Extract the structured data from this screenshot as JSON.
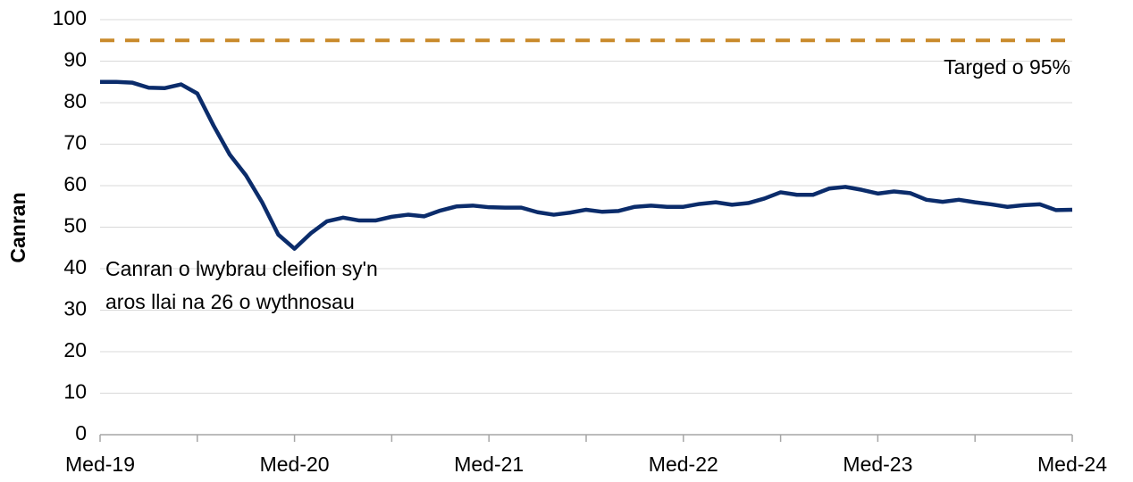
{
  "chart_data": {
    "type": "line",
    "y_label": "Canran",
    "categories": [
      "Med-19",
      null,
      null,
      null,
      null,
      null,
      null,
      null,
      null,
      null,
      null,
      null,
      "Med-20",
      null,
      null,
      null,
      null,
      null,
      null,
      null,
      null,
      null,
      null,
      null,
      "Med-21",
      null,
      null,
      null,
      null,
      null,
      null,
      null,
      null,
      null,
      null,
      null,
      "Med-22",
      null,
      null,
      null,
      null,
      null,
      null,
      null,
      null,
      null,
      null,
      null,
      "Med-23",
      null,
      null,
      null,
      null,
      null,
      null,
      null,
      null,
      null,
      null,
      null,
      "Med-24"
    ],
    "series": [
      {
        "color": "#0b2c6b",
        "values": [
          85,
          85,
          84.8,
          83.6,
          83.5,
          84.4,
          82.2,
          74.5,
          67.5,
          62.5,
          56,
          48.2,
          44.8,
          48.5,
          51.4,
          52.3,
          51.6,
          51.6,
          52.5,
          53,
          52.6,
          54,
          55,
          55.2,
          54.8,
          54.7,
          54.7,
          53.6,
          53,
          53.5,
          54.2,
          53.7,
          53.9,
          54.9,
          55.2,
          54.9,
          54.9,
          55.6,
          56,
          55.4,
          55.8,
          56.9,
          58.4,
          57.8,
          57.8,
          59.3,
          59.7,
          59,
          58.1,
          58.6,
          58.2,
          56.6,
          56.1,
          56.6,
          56,
          55.5,
          54.9,
          55.3,
          55.5,
          54.1,
          54.2
        ]
      }
    ],
    "series_label": [
      "Canran o lwybrau cleifion sy'n",
      "aros llai na 26 o wythnosau"
    ],
    "target": {
      "value": 95,
      "label": "Targed o 95%",
      "color": "#c98a2b"
    },
    "ylim": [
      0,
      100
    ],
    "yticks": [
      0,
      10,
      20,
      30,
      40,
      50,
      60,
      70,
      80,
      90,
      100
    ],
    "grid": true
  }
}
